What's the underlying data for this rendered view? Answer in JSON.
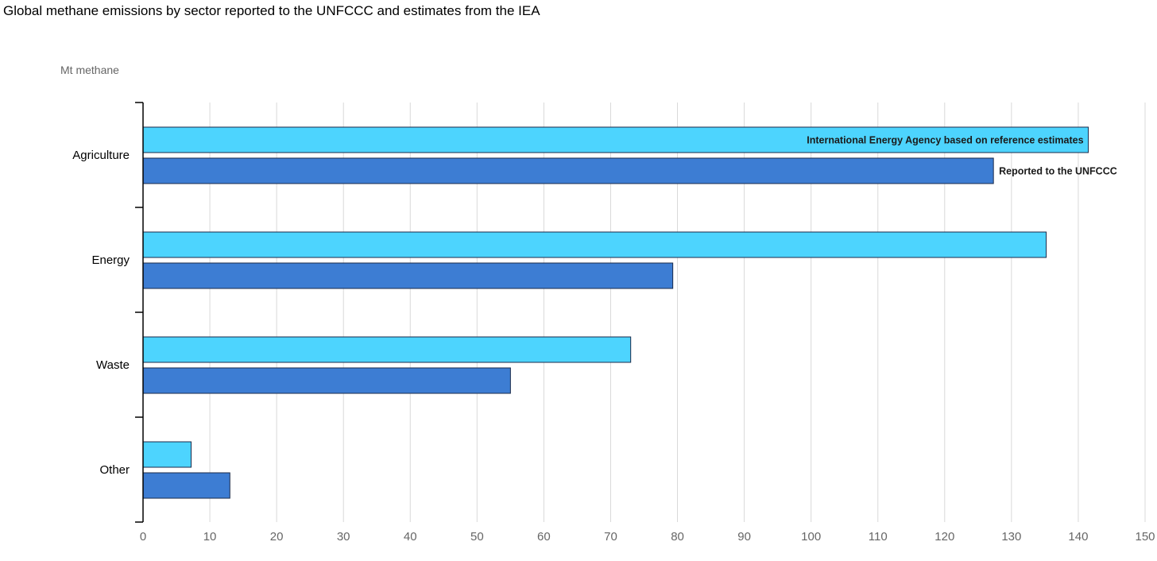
{
  "chart_data": {
    "type": "bar",
    "orientation": "horizontal",
    "title": "Global methane emissions by sector reported to the UNFCCC and estimates from the IEA",
    "unit_label": "Mt methane",
    "categories": [
      "Agriculture",
      "Energy",
      "Waste",
      "Other"
    ],
    "series": [
      {
        "name": "International Energy Agency based on reference estimates",
        "color": "#4dd4fe",
        "values": [
          141.5,
          135.2,
          73.0,
          7.2
        ]
      },
      {
        "name": "Reported to the UNFCCC",
        "color": "#3d7dd3",
        "values": [
          127.3,
          79.3,
          55.0,
          13.0
        ]
      }
    ],
    "xlim": [
      0,
      150
    ],
    "x_ticks": [
      0,
      10,
      20,
      30,
      40,
      50,
      60,
      70,
      80,
      90,
      100,
      110,
      120,
      130,
      140,
      150
    ],
    "grid": true,
    "series_labels_on": "Agriculture"
  }
}
